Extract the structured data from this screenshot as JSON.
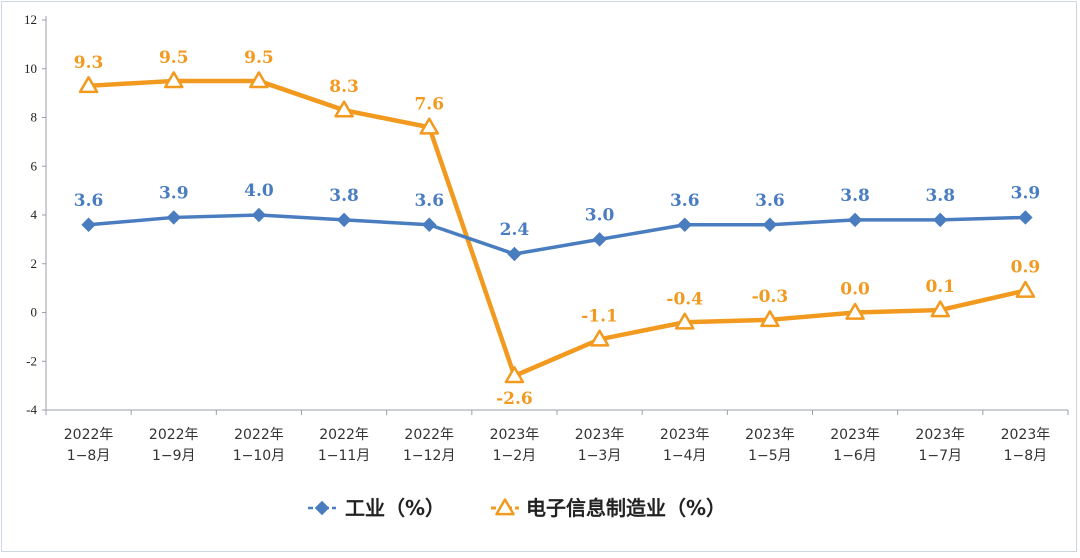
{
  "chart_data": {
    "type": "line",
    "categories": [
      [
        "2022年",
        "1−8月"
      ],
      [
        "2022年",
        "1−9月"
      ],
      [
        "2022年",
        "1−10月"
      ],
      [
        "2022年",
        "1−11月"
      ],
      [
        "2022年",
        "1−12月"
      ],
      [
        "2023年",
        "1−2月"
      ],
      [
        "2023年",
        "1−3月"
      ],
      [
        "2023年",
        "1−4月"
      ],
      [
        "2023年",
        "1−5月"
      ],
      [
        "2023年",
        "1−6月"
      ],
      [
        "2023年",
        "1−7月"
      ],
      [
        "2023年",
        "1−8月"
      ]
    ],
    "series": [
      {
        "name": "工业（%）",
        "color": "#4a7cc0",
        "marker": "diamond",
        "values": [
          3.6,
          3.9,
          4.0,
          3.8,
          3.6,
          2.4,
          3.0,
          3.6,
          3.6,
          3.8,
          3.8,
          3.9
        ],
        "labels": [
          "3.6",
          "3.9",
          "4.0",
          "3.8",
          "3.6",
          "2.4",
          "3.0",
          "3.6",
          "3.6",
          "3.8",
          "3.8",
          "3.9"
        ]
      },
      {
        "name": "电子信息制造业（%）",
        "color": "#f29a1f",
        "marker": "triangle",
        "values": [
          9.3,
          9.5,
          9.5,
          8.3,
          7.6,
          -2.6,
          -1.1,
          -0.4,
          -0.3,
          0.0,
          0.1,
          0.9
        ],
        "labels": [
          "9.3",
          "9.5",
          "9.5",
          "8.3",
          "7.6",
          "-2.6",
          "-1.1",
          "-0.4",
          "-0.3",
          "0.0",
          "0.1",
          "0.9"
        ]
      }
    ],
    "ylim": [
      -4,
      12
    ],
    "yticks": [
      "-4",
      "-2",
      "0",
      "2",
      "4",
      "6",
      "8",
      "10",
      "12"
    ],
    "grid": false,
    "legend": "bottom-center"
  }
}
